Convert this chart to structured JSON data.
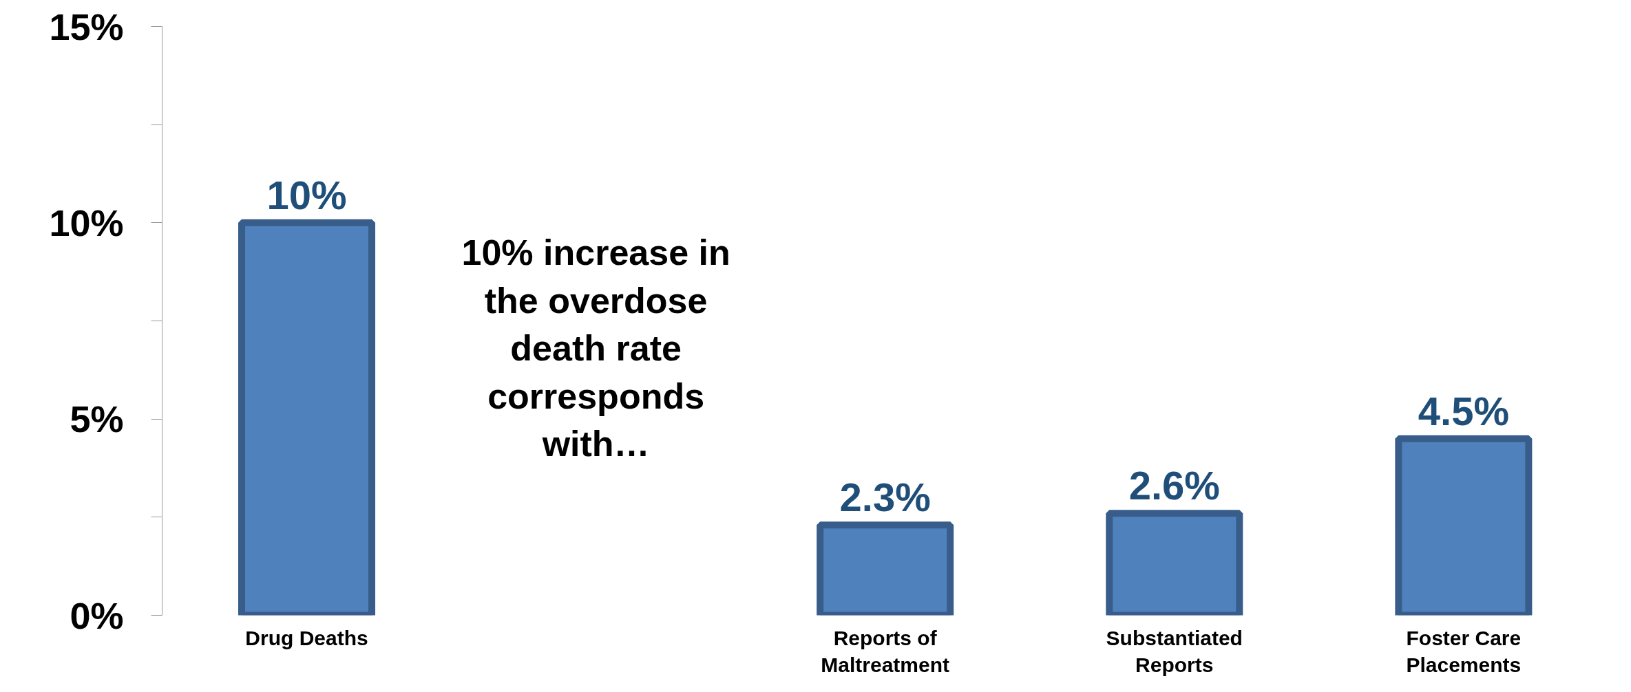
{
  "chart_data": {
    "type": "bar",
    "categories": [
      "Drug Deaths",
      null,
      "Reports of Maltreatment",
      "Substantiated Reports",
      "Foster Care Placements"
    ],
    "values": [
      10,
      null,
      2.3,
      2.6,
      4.5
    ],
    "value_labels": [
      "10%",
      null,
      "2.3%",
      "2.6%",
      "4.5%"
    ],
    "color": "#4f81bd",
    "ylim": [
      0,
      15
    ],
    "yticks": [
      {
        "value": 0,
        "label": "0%"
      },
      {
        "value": 2.5,
        "label": null
      },
      {
        "value": 5,
        "label": "5%"
      },
      {
        "value": 7.5,
        "label": null
      },
      {
        "value": 10,
        "label": "10%"
      },
      {
        "value": 12.5,
        "label": null
      },
      {
        "value": 15,
        "label": "15%"
      }
    ],
    "grid": false,
    "annotations": [
      "10% increase in the overdose death rate corresponds with…"
    ]
  }
}
